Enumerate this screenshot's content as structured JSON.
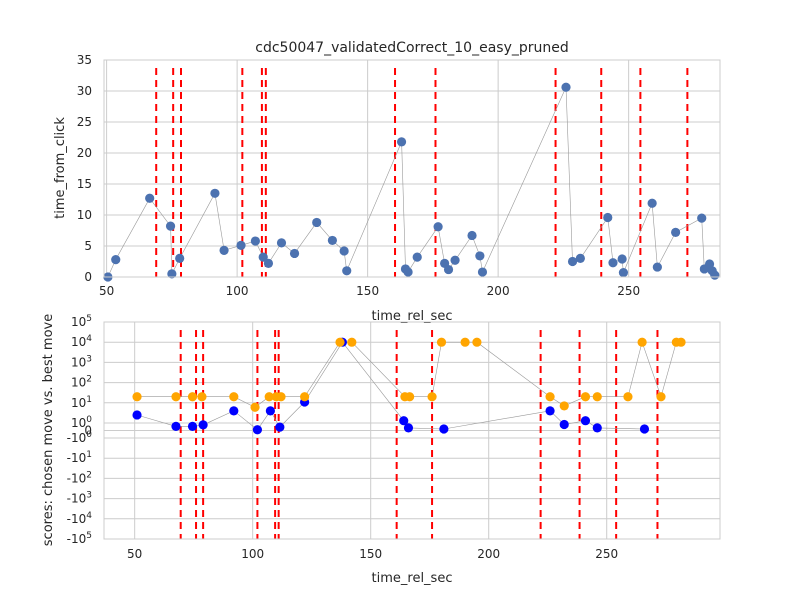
{
  "chart_data": [
    {
      "type": "scatter",
      "title": "cdc50047_validatedCorrect_10_easy_pruned",
      "xlabel": "time_rel_sec",
      "ylabel": "time_from_click",
      "xlim": [
        49,
        285
      ],
      "ylim": [
        0,
        35
      ],
      "xticks": [
        50,
        100,
        150,
        200,
        250
      ],
      "yticks": [
        0,
        5,
        10,
        15,
        20,
        25,
        30,
        35
      ],
      "grid": true,
      "marker_color": "#4c72b0",
      "vlines_color": "#ff0000",
      "vlines": [
        69,
        75.5,
        78.5,
        102,
        109.5,
        111,
        160.5,
        176,
        222,
        239.5,
        254.5,
        272.5
      ],
      "series": [
        {
          "x": [
            50.5,
            53.5,
            66.5,
            74.5,
            75,
            78,
            91.5,
            95,
            101.5,
            107,
            110,
            112,
            117,
            122,
            130.5,
            136.5,
            141,
            142,
            163,
            164.5,
            165.5,
            169,
            177,
            179.5,
            181,
            183.5,
            190,
            193,
            194,
            226,
            228.5,
            231.5,
            242,
            244,
            247.5,
            248,
            259,
            261,
            268,
            278,
            279,
            281,
            282,
            283
          ],
          "y": [
            0,
            2.8,
            12.7,
            8.2,
            0.5,
            3,
            13.5,
            4.3,
            5.1,
            5.8,
            3.2,
            2.2,
            5.5,
            3.8,
            8.8,
            5.9,
            4.2,
            1,
            21.8,
            1.3,
            0.8,
            3.2,
            8.1,
            2.2,
            1.2,
            2.7,
            6.7,
            3.4,
            0.8,
            30.6,
            2.5,
            3,
            9.6,
            2.3,
            2.9,
            0.7,
            11.9,
            1.6,
            7.2,
            9.5,
            1.3,
            2.1,
            1,
            0.3
          ]
        }
      ]
    },
    {
      "type": "scatter",
      "xlabel": "time_rel_sec",
      "ylabel": "scores: chosen move vs. best move",
      "yscale": "symlog",
      "xlim": [
        37,
        298
      ],
      "ylim": [
        -100000,
        100000
      ],
      "xticks": [
        50,
        100,
        150,
        200,
        250
      ],
      "ytick_labels": [
        "10^5",
        "10^4",
        "10^3",
        "10^2",
        "10^1",
        "10^0",
        "0",
        "-10^0",
        "-10^1",
        "-10^2",
        "-10^3",
        "-10^4",
        "-10^5"
      ],
      "grid": true,
      "vlines_color": "#ff0000",
      "vlines": [
        69.5,
        76,
        79,
        102,
        109.5,
        111,
        161,
        176,
        222,
        238.5,
        254,
        271.5
      ],
      "series": [
        {
          "color": "#0000ff",
          "x": [
            51,
            67.5,
            74.5,
            79,
            92,
            102,
            107.5,
            111.5,
            122,
            138,
            164,
            166,
            181,
            226,
            232,
            241,
            246,
            266
          ],
          "y": [
            2.5,
            0.55,
            0.55,
            0.75,
            4,
            0.1,
            4,
            0.45,
            11,
            10000,
            1.3,
            0.35,
            0.2,
            4,
            0.8,
            1.3,
            0.35,
            0.2
          ]
        },
        {
          "color": "#ffa500",
          "x": [
            51,
            67.5,
            74.5,
            78.5,
            92,
            101,
            107,
            110,
            112,
            122,
            137,
            142,
            164.5,
            166.5,
            176,
            180,
            190,
            195,
            226,
            232,
            241,
            246,
            259,
            265,
            273,
            279.5,
            281.5
          ],
          "y": [
            20,
            20,
            20,
            20,
            20,
            6,
            20,
            20,
            20,
            20,
            10000,
            10000,
            20,
            20,
            20,
            10000,
            10000,
            10000,
            20,
            7,
            20,
            20,
            20,
            10000,
            20,
            10000,
            10000
          ]
        }
      ]
    }
  ]
}
